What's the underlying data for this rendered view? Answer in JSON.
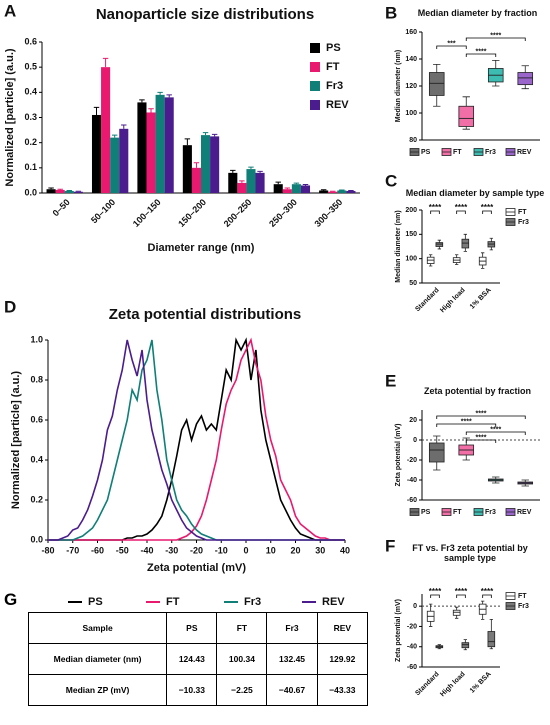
{
  "chart_data": [
    {
      "type": "bar",
      "panel_label": "A",
      "title": "Nanoparticle size distributions",
      "x_label": "Diameter range (nm)",
      "y_label": "Normalized [particle] (a.u.)",
      "categories": [
        "0–50",
        "50–100",
        "100–150",
        "150–200",
        "200–250",
        "250–300",
        "300–350"
      ],
      "series": [
        {
          "name": "PS",
          "color": "#000000",
          "values": [
            0.015,
            0.31,
            0.36,
            0.19,
            0.08,
            0.035,
            0.01
          ],
          "errors": [
            0.005,
            0.03,
            0.01,
            0.025,
            0.01,
            0.008,
            0.003
          ]
        },
        {
          "name": "FT",
          "color": "#e8196e",
          "values": [
            0.012,
            0.5,
            0.32,
            0.1,
            0.04,
            0.015,
            0.005
          ],
          "errors": [
            0.003,
            0.035,
            0.015,
            0.02,
            0.008,
            0.005,
            0.002
          ]
        },
        {
          "name": "Fr3",
          "color": "#0f7f78",
          "values": [
            0.008,
            0.22,
            0.39,
            0.23,
            0.095,
            0.035,
            0.01
          ],
          "errors": [
            0.002,
            0.01,
            0.01,
            0.01,
            0.008,
            0.004,
            0.002
          ]
        },
        {
          "name": "REV",
          "color": "#4b1c8e",
          "values": [
            0.005,
            0.255,
            0.38,
            0.225,
            0.08,
            0.03,
            0.008
          ],
          "errors": [
            0.002,
            0.015,
            0.01,
            0.008,
            0.006,
            0.004,
            0.002
          ]
        }
      ],
      "ylim": [
        0,
        0.6
      ],
      "yticks": [
        {
          "value": 0,
          "label": "0.0"
        },
        0.1,
        0.2,
        0.3,
        0.4,
        0.5,
        0.6
      ],
      "legend": "top-right"
    },
    {
      "type": "box",
      "panel_label": "B",
      "title": "Median diameter by fraction",
      "y_label": "Median diameter (nm)",
      "series": [
        {
          "name": "PS",
          "color": "#6d6d6d",
          "boxes": [
            {
              "min": 105,
              "q1": 113,
              "median": 122,
              "q3": 130,
              "max": 136
            }
          ]
        },
        {
          "name": "FT",
          "color": "#f26ea6",
          "boxes": [
            {
              "min": 88,
              "q1": 90,
              "median": 96,
              "q3": 105,
              "max": 112
            }
          ]
        },
        {
          "name": "Fr3",
          "color": "#3dbdb2",
          "boxes": [
            {
              "min": 120,
              "q1": 123,
              "median": 128,
              "q3": 133,
              "max": 139
            }
          ]
        },
        {
          "name": "REV",
          "color": "#9a66cc",
          "boxes": [
            {
              "min": 118,
              "q1": 121,
              "median": 126,
              "q3": 130,
              "max": 135
            }
          ]
        }
      ],
      "comparisons": [
        {
          "pair": [
            "FT",
            "REV"
          ],
          "label": "****"
        },
        {
          "pair": [
            "PS",
            "FT"
          ],
          "label": "***"
        },
        {
          "pair": [
            "FT",
            "Fr3"
          ],
          "label": "****"
        }
      ],
      "ylim": [
        80,
        160
      ],
      "yticks": [
        80,
        100,
        120,
        140,
        160
      ],
      "legend": "bottom"
    },
    {
      "type": "box",
      "panel_label": "C",
      "title": "Median diameter by sample type",
      "y_label": "Median diameter (nm)",
      "categories": [
        "Standard",
        "High load",
        "1% BSA"
      ],
      "series": [
        {
          "name": "FT",
          "color": "#ffffff",
          "boxes": [
            {
              "min": 85,
              "q1": 90,
              "median": 97,
              "q3": 103,
              "max": 108
            },
            {
              "min": 88,
              "q1": 92,
              "median": 97,
              "q3": 102,
              "max": 108
            },
            {
              "min": 80,
              "q1": 87,
              "median": 95,
              "q3": 103,
              "max": 112
            }
          ]
        },
        {
          "name": "Fr3",
          "color": "#7a7a7a",
          "boxes": [
            {
              "min": 120,
              "q1": 125,
              "median": 130,
              "q3": 133,
              "max": 138
            },
            {
              "min": 115,
              "q1": 122,
              "median": 132,
              "q3": 140,
              "max": 150
            },
            {
              "min": 118,
              "q1": 124,
              "median": 130,
              "q3": 135,
              "max": 142
            }
          ]
        }
      ],
      "significance": [
        "****",
        "****",
        "****"
      ],
      "ylim": [
        50,
        200
      ],
      "yticks": [
        50,
        100,
        150,
        200
      ],
      "legend": "right"
    },
    {
      "type": "line",
      "panel_label": "D",
      "title": "Zeta potential distributions",
      "x_label": "Zeta potential (mV)",
      "y_label": "Normalized [particle] (a.u.)",
      "x": [
        -80,
        -78,
        -76,
        -74,
        -72,
        -70,
        -68,
        -66,
        -64,
        -62,
        -60,
        -58,
        -56,
        -54,
        -52,
        -50,
        -48,
        -46,
        -44,
        -42,
        -40,
        -38,
        -36,
        -34,
        -32,
        -30,
        -28,
        -26,
        -24,
        -22,
        -20,
        -18,
        -16,
        -14,
        -12,
        -10,
        -8,
        -6,
        -4,
        -2,
        0,
        2,
        4,
        6,
        8,
        10,
        12,
        14,
        16,
        18,
        20,
        22,
        24,
        26,
        28,
        30,
        32,
        34,
        36,
        38,
        40
      ],
      "series": [
        {
          "name": "PS",
          "color": "#000000",
          "values": [
            0,
            0,
            0,
            0,
            0,
            0,
            0,
            0,
            0,
            0,
            0,
            0,
            0,
            0,
            0,
            0,
            0.01,
            0.01,
            0.02,
            0.02,
            0.03,
            0.05,
            0.08,
            0.12,
            0.2,
            0.3,
            0.42,
            0.55,
            0.6,
            0.5,
            0.58,
            0.62,
            0.55,
            0.58,
            0.55,
            0.7,
            0.85,
            0.8,
            1.0,
            0.95,
            1.0,
            0.8,
            0.95,
            0.65,
            0.5,
            0.4,
            0.3,
            0.2,
            0.15,
            0.1,
            0.06,
            0.03,
            0.02,
            0.01,
            0,
            0,
            0,
            0,
            0,
            0,
            0
          ]
        },
        {
          "name": "FT",
          "color": "#e8196e",
          "values": [
            0,
            0,
            0,
            0,
            0,
            0,
            0,
            0,
            0,
            0,
            0,
            0,
            0,
            0,
            0,
            0,
            0,
            0,
            0,
            0,
            0,
            0,
            0,
            0,
            0,
            0,
            0,
            0.01,
            0.02,
            0.04,
            0.07,
            0.12,
            0.2,
            0.3,
            0.4,
            0.55,
            0.68,
            0.75,
            0.8,
            0.9,
            0.95,
            1.0,
            0.88,
            0.8,
            0.62,
            0.5,
            0.42,
            0.3,
            0.25,
            0.2,
            0.12,
            0.08,
            0.06,
            0.04,
            0.02,
            0.01,
            0.01,
            0,
            0,
            0,
            0
          ]
        },
        {
          "name": "Fr3",
          "color": "#0f7f78",
          "values": [
            0,
            0,
            0,
            0,
            0,
            0,
            0.01,
            0.02,
            0.04,
            0.06,
            0.1,
            0.15,
            0.2,
            0.3,
            0.4,
            0.5,
            0.6,
            0.75,
            0.7,
            0.85,
            0.9,
            1.0,
            0.75,
            0.6,
            0.4,
            0.3,
            0.2,
            0.15,
            0.12,
            0.08,
            0.05,
            0.03,
            0.02,
            0.01,
            0,
            0,
            0,
            0,
            0,
            0,
            0,
            0,
            0,
            0,
            0,
            0,
            0,
            0,
            0,
            0,
            0,
            0,
            0,
            0,
            0,
            0,
            0,
            0,
            0,
            0,
            0
          ]
        },
        {
          "name": "REV",
          "color": "#4b1c8e",
          "values": [
            0,
            0,
            0,
            0.01,
            0.02,
            0.05,
            0.06,
            0.1,
            0.15,
            0.22,
            0.3,
            0.4,
            0.55,
            0.62,
            0.75,
            0.85,
            1.0,
            0.9,
            0.82,
            0.95,
            0.7,
            0.55,
            0.45,
            0.35,
            0.28,
            0.2,
            0.15,
            0.1,
            0.06,
            0.04,
            0.02,
            0.01,
            0,
            0,
            0,
            0,
            0,
            0,
            0,
            0,
            0,
            0,
            0,
            0,
            0,
            0,
            0,
            0,
            0,
            0,
            0,
            0,
            0,
            0,
            0,
            0,
            0,
            0,
            0,
            0,
            0
          ]
        }
      ],
      "xlim": [
        -80,
        40
      ],
      "xticks": [
        -80,
        -70,
        -60,
        -50,
        -40,
        -30,
        -20,
        -10,
        0,
        10,
        20,
        30,
        40
      ],
      "ylim": [
        0,
        1
      ],
      "yticks": [
        {
          "value": 0,
          "label": "0.0"
        },
        0.2,
        0.4,
        0.6,
        0.8,
        {
          "value": 1,
          "label": "1.0"
        }
      ],
      "legend": "bottom"
    },
    {
      "type": "box",
      "panel_label": "E",
      "title": "Zeta potential by fraction",
      "y_label": "Zeta potential (mV)",
      "series": [
        {
          "name": "PS",
          "color": "#6d6d6d",
          "boxes": [
            {
              "min": -30,
              "q1": -22,
              "median": -10,
              "q3": -3,
              "max": 4
            }
          ]
        },
        {
          "name": "FT",
          "color": "#f26ea6",
          "boxes": [
            {
              "min": -20,
              "q1": -15,
              "median": -10,
              "q3": -5,
              "max": 2
            }
          ]
        },
        {
          "name": "Fr3",
          "color": "#3dbdb2",
          "boxes": [
            {
              "min": -43,
              "q1": -41,
              "median": -40,
              "q3": -39,
              "max": -37
            }
          ]
        },
        {
          "name": "REV",
          "color": "#9a66cc",
          "boxes": [
            {
              "min": -46,
              "q1": -44,
              "median": -43,
              "q3": -42,
              "max": -40
            }
          ]
        }
      ],
      "comparisons": [
        {
          "pair": [
            "PS",
            "REV"
          ],
          "label": "****"
        },
        {
          "pair": [
            "PS",
            "Fr3"
          ],
          "label": "****"
        },
        {
          "pair": [
            "FT",
            "REV"
          ],
          "label": "****"
        },
        {
          "pair": [
            "FT",
            "Fr3"
          ],
          "label": "****"
        }
      ],
      "hline": 0,
      "ylim": [
        -60,
        30
      ],
      "yticks": [
        -60,
        -40,
        -20,
        0,
        20
      ],
      "legend": "bottom"
    },
    {
      "type": "box",
      "panel_label": "F",
      "title": "FT vs. Fr3 zeta potential by sample type",
      "y_label": "Zeta potential (mV)",
      "categories": [
        "Standard",
        "High load",
        "1% BSA"
      ],
      "series": [
        {
          "name": "FT",
          "color": "#ffffff",
          "boxes": [
            {
              "min": -20,
              "q1": -15,
              "median": -10,
              "q3": -5,
              "max": 2
            },
            {
              "min": -12,
              "q1": -9,
              "median": -6,
              "q3": -4,
              "max": -1
            },
            {
              "min": -13,
              "q1": -8,
              "median": -3,
              "q3": 2,
              "max": 5
            }
          ]
        },
        {
          "name": "Fr3",
          "color": "#7a7a7a",
          "boxes": [
            {
              "min": -42,
              "q1": -41,
              "median": -40,
              "q3": -39,
              "max": -38
            },
            {
              "min": -43,
              "q1": -41,
              "median": -38,
              "q3": -36,
              "max": -33
            },
            {
              "min": -42,
              "q1": -40,
              "median": -35,
              "q3": -25,
              "max": -13
            }
          ]
        }
      ],
      "significance": [
        "****",
        "****",
        "****"
      ],
      "hline": 0,
      "ylim": [
        -60,
        12
      ],
      "yticks": [
        -60,
        -40,
        -20,
        0
      ],
      "legend": "right"
    }
  ],
  "table": {
    "panel_label": "G",
    "header": [
      "Sample",
      "PS",
      "FT",
      "Fr3",
      "REV"
    ],
    "rows": [
      [
        "Median diameter (nm)",
        "124.43",
        "100.34",
        "132.45",
        "129.92"
      ],
      [
        "Median ZP (mV)",
        "−10.33",
        "−2.25",
        "−40.67",
        "−43.33"
      ]
    ]
  }
}
